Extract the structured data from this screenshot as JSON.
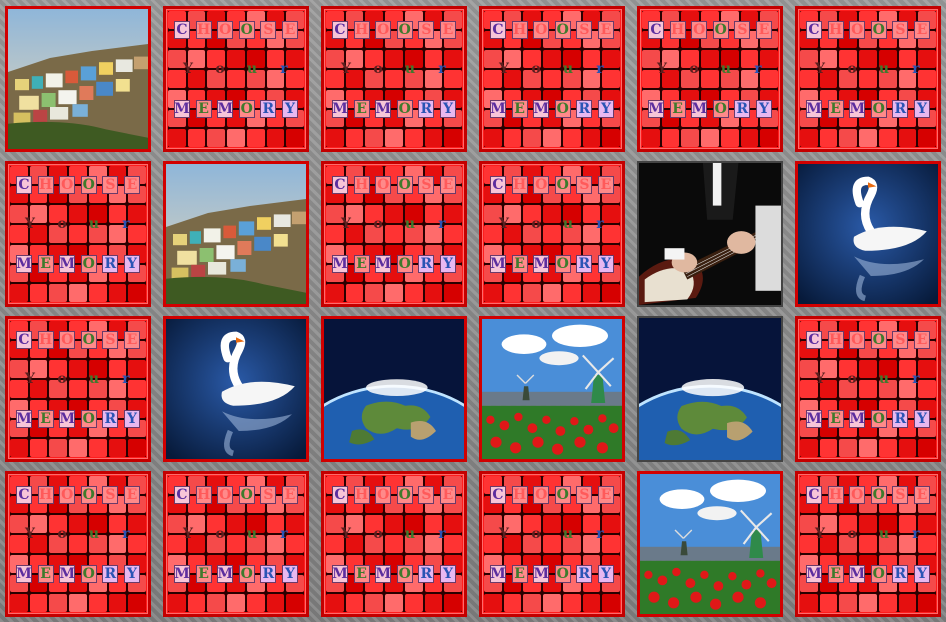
{
  "game": {
    "back_text": {
      "row1": [
        "C",
        "H",
        "O",
        "O",
        "S",
        "E"
      ],
      "row2": [
        "Y",
        "o",
        "u",
        "r"
      ],
      "row3": [
        "M",
        "E",
        "M",
        "O",
        "R",
        "Y"
      ]
    },
    "cards": [
      {
        "id": "r1c1",
        "state": "face",
        "image": "village-hillside"
      },
      {
        "id": "r1c2",
        "state": "back"
      },
      {
        "id": "r1c3",
        "state": "back"
      },
      {
        "id": "r1c4",
        "state": "back"
      },
      {
        "id": "r1c5",
        "state": "back"
      },
      {
        "id": "r1c6",
        "state": "back"
      },
      {
        "id": "r2c1",
        "state": "back"
      },
      {
        "id": "r2c2",
        "state": "face",
        "image": "village-hillside"
      },
      {
        "id": "r2c3",
        "state": "back"
      },
      {
        "id": "r2c4",
        "state": "back"
      },
      {
        "id": "r2c5",
        "state": "face",
        "image": "guitarist"
      },
      {
        "id": "r2c6",
        "state": "face",
        "image": "swan"
      },
      {
        "id": "r3c1",
        "state": "back"
      },
      {
        "id": "r3c2",
        "state": "face",
        "image": "swan"
      },
      {
        "id": "r3c3",
        "state": "face",
        "image": "earth"
      },
      {
        "id": "r3c4",
        "state": "face",
        "image": "windmills-tulips"
      },
      {
        "id": "r3c5",
        "state": "face",
        "image": "earth"
      },
      {
        "id": "r3c6",
        "state": "back"
      },
      {
        "id": "r4c1",
        "state": "back"
      },
      {
        "id": "r4c2",
        "state": "back"
      },
      {
        "id": "r4c3",
        "state": "back"
      },
      {
        "id": "r4c4",
        "state": "back"
      },
      {
        "id": "r4c5",
        "state": "face",
        "image": "windmills-tulips"
      },
      {
        "id": "r4c6",
        "state": "back"
      }
    ],
    "colors": {
      "card_back": "#ff1d1d",
      "card_border": "#c40000",
      "board": "#8a8a8a"
    }
  }
}
